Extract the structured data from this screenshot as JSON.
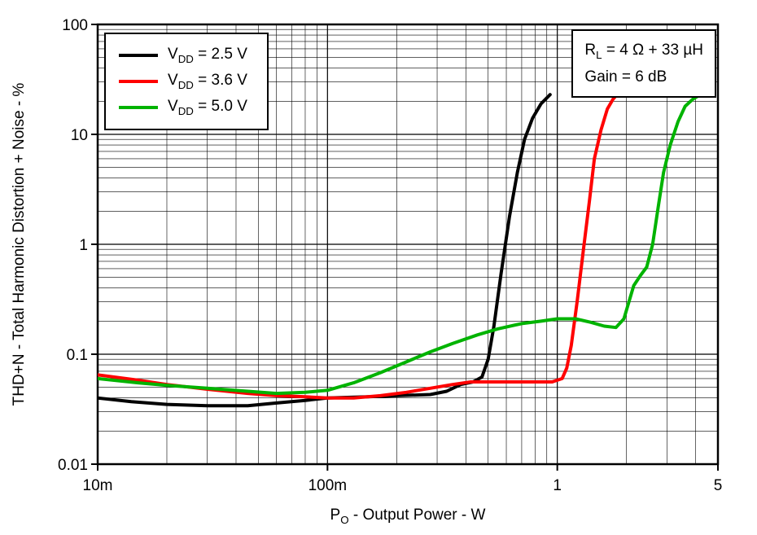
{
  "figure": {
    "ylabel": "THD+N - Total Harmonic Distortion + Noise - %",
    "xlabel": {
      "sym": "P",
      "sub": "O",
      "rest": " - Output Power - W"
    },
    "legend": {
      "items": [
        {
          "sym": "V",
          "sub": "DD",
          "rest": " = 2.5 V"
        },
        {
          "sym": "V",
          "sub": "DD",
          "rest": " = 3.6 V"
        },
        {
          "sym": "V",
          "sub": "DD",
          "rest": " = 5.0 V"
        }
      ]
    },
    "annotation": {
      "line1_sym": "R",
      "line1_sub": "L",
      "line1_rest": " = 4 Ω + 33 µH",
      "line2": "Gain = 6 dB"
    },
    "colors": {
      "axis": "#000000",
      "grid": "#000000",
      "background": "#ffffff"
    }
  },
  "chart_data": {
    "type": "line",
    "title": "",
    "xlabel": "PO - Output Power - W",
    "ylabel": "THD+N - Total Harmonic Distortion + Noise - %",
    "x_scale": "log",
    "y_scale": "log",
    "xlim": [
      0.01,
      5
    ],
    "ylim": [
      0.01,
      100
    ],
    "grid": "log-major-and-minor-both-axes",
    "legend_position": "top-left",
    "x_ticks": {
      "values": [
        0.01,
        0.1,
        1,
        5
      ],
      "labels": [
        "10m",
        "100m",
        "1",
        "5"
      ]
    },
    "y_ticks": {
      "values": [
        100,
        10,
        1,
        0.1,
        0.01
      ],
      "labels": [
        "100",
        "10",
        "1",
        "0.1",
        "0.01"
      ]
    },
    "conditions": [
      "RL = 4 Ω + 33 µH",
      "Gain = 6 dB"
    ],
    "series": [
      {
        "name": "VDD = 2.5 V",
        "color": "#000000",
        "points": [
          [
            0.01,
            0.04
          ],
          [
            0.014,
            0.037
          ],
          [
            0.02,
            0.035
          ],
          [
            0.03,
            0.034
          ],
          [
            0.045,
            0.034
          ],
          [
            0.06,
            0.036
          ],
          [
            0.08,
            0.038
          ],
          [
            0.1,
            0.04
          ],
          [
            0.15,
            0.041
          ],
          [
            0.2,
            0.042
          ],
          [
            0.28,
            0.043
          ],
          [
            0.33,
            0.046
          ],
          [
            0.38,
            0.053
          ],
          [
            0.43,
            0.056
          ],
          [
            0.47,
            0.062
          ],
          [
            0.5,
            0.09
          ],
          [
            0.53,
            0.18
          ],
          [
            0.57,
            0.55
          ],
          [
            0.62,
            1.8
          ],
          [
            0.67,
            4.5
          ],
          [
            0.72,
            9.0
          ],
          [
            0.78,
            14.0
          ],
          [
            0.85,
            19.0
          ],
          [
            0.93,
            23.0
          ]
        ]
      },
      {
        "name": "VDD = 3.6 V",
        "color": "#ff0000",
        "points": [
          [
            0.01,
            0.065
          ],
          [
            0.015,
            0.058
          ],
          [
            0.02,
            0.053
          ],
          [
            0.03,
            0.048
          ],
          [
            0.045,
            0.044
          ],
          [
            0.06,
            0.042
          ],
          [
            0.08,
            0.041
          ],
          [
            0.1,
            0.04
          ],
          [
            0.13,
            0.04
          ],
          [
            0.17,
            0.042
          ],
          [
            0.22,
            0.045
          ],
          [
            0.28,
            0.049
          ],
          [
            0.35,
            0.053
          ],
          [
            0.42,
            0.056
          ],
          [
            0.5,
            0.056
          ],
          [
            0.65,
            0.056
          ],
          [
            0.8,
            0.056
          ],
          [
            0.95,
            0.056
          ],
          [
            1.05,
            0.06
          ],
          [
            1.1,
            0.075
          ],
          [
            1.15,
            0.12
          ],
          [
            1.22,
            0.3
          ],
          [
            1.3,
            0.9
          ],
          [
            1.38,
            2.5
          ],
          [
            1.45,
            6.0
          ],
          [
            1.55,
            11.0
          ],
          [
            1.65,
            17.0
          ],
          [
            1.75,
            21.0
          ],
          [
            1.82,
            23.0
          ]
        ]
      },
      {
        "name": "VDD = 5.0 V",
        "color": "#00b300",
        "points": [
          [
            0.01,
            0.06
          ],
          [
            0.015,
            0.055
          ],
          [
            0.02,
            0.052
          ],
          [
            0.03,
            0.049
          ],
          [
            0.045,
            0.046
          ],
          [
            0.06,
            0.044
          ],
          [
            0.08,
            0.045
          ],
          [
            0.1,
            0.047
          ],
          [
            0.13,
            0.055
          ],
          [
            0.17,
            0.068
          ],
          [
            0.22,
            0.085
          ],
          [
            0.28,
            0.105
          ],
          [
            0.35,
            0.125
          ],
          [
            0.45,
            0.15
          ],
          [
            0.55,
            0.17
          ],
          [
            0.7,
            0.19
          ],
          [
            0.85,
            0.2
          ],
          [
            1.0,
            0.21
          ],
          [
            1.2,
            0.21
          ],
          [
            1.4,
            0.195
          ],
          [
            1.6,
            0.18
          ],
          [
            1.8,
            0.175
          ],
          [
            1.95,
            0.21
          ],
          [
            2.05,
            0.3
          ],
          [
            2.15,
            0.42
          ],
          [
            2.3,
            0.52
          ],
          [
            2.45,
            0.62
          ],
          [
            2.6,
            1.0
          ],
          [
            2.75,
            2.2
          ],
          [
            2.9,
            4.5
          ],
          [
            3.1,
            8.0
          ],
          [
            3.35,
            13.0
          ],
          [
            3.6,
            18.0
          ],
          [
            3.9,
            21.0
          ],
          [
            4.2,
            23.0
          ]
        ]
      }
    ]
  }
}
